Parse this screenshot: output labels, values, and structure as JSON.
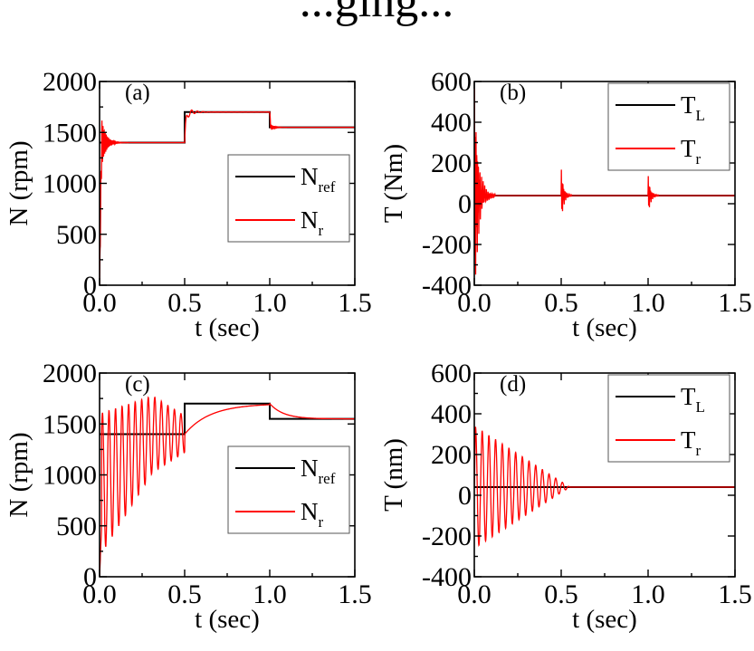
{
  "header_fragment": "...ging...",
  "chart_data": [
    {
      "id": "a",
      "type": "line",
      "panel_label": "(a)",
      "xlabel": "t (sec)",
      "ylabel": "N (rpm)",
      "xlim": [
        0,
        1.5
      ],
      "ylim": [
        0,
        2000
      ],
      "xticks": [
        0,
        0.5,
        1.0,
        1.5
      ],
      "xtick_labels": [
        "0.0",
        "0.5",
        "1.0",
        "1.5"
      ],
      "yticks": [
        0,
        500,
        1000,
        1500,
        2000
      ],
      "ytick_labels": [
        "0",
        "500",
        "1000",
        "1500",
        "2000"
      ],
      "legend": {
        "placement": "right-middle",
        "entries": [
          {
            "main": "N",
            "sub": "ref",
            "color": "#000000"
          },
          {
            "main": "N",
            "sub": "r",
            "color": "#ff0000"
          }
        ]
      },
      "series": [
        {
          "name": "N_ref",
          "color": "#000000",
          "role": "reference",
          "kind": "step",
          "x": [
            0,
            0.5,
            0.5,
            1.0,
            1.0,
            1.5
          ],
          "y": [
            1400,
            1400,
            1700,
            1700,
            1550,
            1550
          ]
        },
        {
          "name": "N_r",
          "color": "#ff0000",
          "role": "actual",
          "kind": "oscillation",
          "envelopes": [
            {
              "t0": 0,
              "t1": 0.5,
              "from": 0,
              "target": 1400,
              "rise": 0.012,
              "amp": 380,
              "tau": 0.025,
              "freq": 160
            },
            {
              "t0": 0.5,
              "t1": 1.0,
              "from": 1400,
              "target": 1700,
              "rise": 0.008,
              "amp": 60,
              "tau": 0.04,
              "freq": 30
            },
            {
              "t0": 1.0,
              "t1": 1.5,
              "from": 1700,
              "target": 1550,
              "rise": 0.006,
              "amp": 40,
              "tau": 0.02,
              "freq": 160
            }
          ]
        }
      ]
    },
    {
      "id": "b",
      "type": "line",
      "panel_label": "(b)",
      "xlabel": "t (sec)",
      "ylabel": "T (Nm)",
      "xlim": [
        0,
        1.5
      ],
      "ylim": [
        -400,
        600
      ],
      "xticks": [
        0,
        0.5,
        1.0,
        1.5
      ],
      "xtick_labels": [
        "0.0",
        "0.5",
        "1.0",
        "1.5"
      ],
      "yticks": [
        -400,
        -200,
        0,
        200,
        400,
        600
      ],
      "ytick_labels": [
        "-400",
        "-200",
        "0",
        "200",
        "400",
        "600"
      ],
      "legend": {
        "placement": "top-right",
        "entries": [
          {
            "main": "T",
            "sub": "L",
            "color": "#000000"
          },
          {
            "main": "T",
            "sub": "r",
            "color": "#ff0000"
          }
        ]
      },
      "series": [
        {
          "name": "T_L",
          "color": "#000000",
          "role": "reference",
          "kind": "step",
          "x": [
            0,
            1.5
          ],
          "y": [
            40,
            40
          ]
        },
        {
          "name": "T_r",
          "color": "#ff0000",
          "role": "actual",
          "kind": "torque-bursts",
          "baseline": 40,
          "bursts": [
            {
              "t0": 0,
              "amp": 480,
              "tau": 0.02,
              "freq": 220,
              "len": 0.12
            },
            {
              "t0": 0.5,
              "amp": 120,
              "tau": 0.012,
              "freq": 220,
              "len": 0.06
            },
            {
              "t0": 1.0,
              "amp": 90,
              "tau": 0.012,
              "freq": 220,
              "len": 0.06
            }
          ]
        }
      ]
    },
    {
      "id": "c",
      "type": "line",
      "panel_label": "(c)",
      "xlabel": "t (sec)",
      "ylabel": "N (rpm)",
      "xlim": [
        0,
        1.5
      ],
      "ylim": [
        0,
        2000
      ],
      "xticks": [
        0,
        0.5,
        1.0,
        1.5
      ],
      "xtick_labels": [
        "0.0",
        "0.5",
        "1.0",
        "1.5"
      ],
      "yticks": [
        0,
        500,
        1000,
        1500,
        2000
      ],
      "ytick_labels": [
        "0",
        "500",
        "1000",
        "1500",
        "2000"
      ],
      "legend": {
        "placement": "right-middle",
        "entries": [
          {
            "main": "N",
            "sub": "ref",
            "color": "#000000"
          },
          {
            "main": "N",
            "sub": "r",
            "color": "#ff0000"
          }
        ]
      },
      "series": [
        {
          "name": "N_ref",
          "color": "#000000",
          "role": "reference",
          "kind": "step",
          "x": [
            0,
            0.5,
            0.5,
            1.0,
            1.0,
            1.5
          ],
          "y": [
            1400,
            1400,
            1700,
            1700,
            1550,
            1550
          ]
        },
        {
          "name": "N_r",
          "color": "#ff0000",
          "role": "actual",
          "kind": "slow-oscillation",
          "segments": [
            {
              "t0": 0,
              "t1": 0.5,
              "mean_start": 900,
              "mean_end": 1400,
              "amp_start": 700,
              "amp_end": 180,
              "freq": 26
            },
            {
              "t0": 0.5,
              "t1": 1.0,
              "from": 1400,
              "target": 1700,
              "tau": 0.15
            },
            {
              "t0": 1.0,
              "t1": 1.5,
              "from": 1700,
              "target": 1550,
              "tau": 0.08
            }
          ]
        }
      ]
    },
    {
      "id": "d",
      "type": "line",
      "panel_label": "(d)",
      "xlabel": "t (sec)",
      "ylabel": "T (nm)",
      "xlim": [
        0,
        1.5
      ],
      "ylim": [
        -400,
        600
      ],
      "xticks": [
        0,
        0.5,
        1.0,
        1.5
      ],
      "xtick_labels": [
        "0.0",
        "0.5",
        "1.0",
        "1.5"
      ],
      "yticks": [
        -400,
        -200,
        0,
        200,
        400,
        600
      ],
      "ytick_labels": [
        "-400",
        "-200",
        "0",
        "200",
        "400",
        "600"
      ],
      "legend": {
        "placement": "top-right",
        "entries": [
          {
            "main": "T",
            "sub": "L",
            "color": "#000000"
          },
          {
            "main": "T",
            "sub": "r",
            "color": "#ff0000"
          }
        ]
      },
      "series": [
        {
          "name": "T_L",
          "color": "#000000",
          "role": "reference",
          "kind": "step",
          "x": [
            0,
            1.5
          ],
          "y": [
            40,
            40
          ]
        },
        {
          "name": "T_r",
          "color": "#ff0000",
          "role": "actual",
          "kind": "decaying-sine",
          "baseline": 40,
          "amp_start": 300,
          "decay_end": 0.55,
          "freq": 26
        }
      ]
    }
  ]
}
